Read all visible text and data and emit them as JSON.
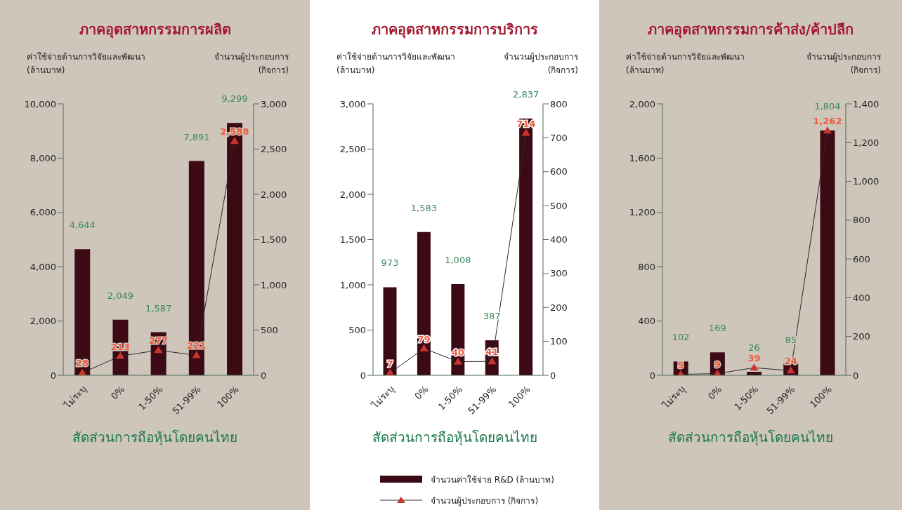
{
  "chart_data": [
    {
      "type": "bar",
      "title": "ภาคอุตสาหกรรมการผลิต",
      "xlabel": "สัดส่วนการถือหุ้นโดยคนไทย",
      "ylabel": "ค่าใช้จ่ายด้านการวิจัยและพัฒนา\n(ล้านบาท)",
      "y2label": "จำนวนผู้ประกอบการ\n(กิจการ)",
      "categories": [
        "ไม่ระบุ",
        "0%",
        "1-50%",
        "51-99%",
        "100%"
      ],
      "series": [
        {
          "color": "#3b0a14",
          "values": [
            4644,
            2049,
            1587,
            7891,
            9299
          ],
          "value_labels": [
            "4,644",
            "2,049",
            "1,587",
            "7,891",
            "9,299"
          ]
        },
        {
          "type": "line",
          "axis": "y2",
          "color": "#c8372d",
          "marker": "triangle",
          "values": [
            28,
            213,
            277,
            221,
            2588
          ],
          "value_labels": [
            "28",
            "213",
            "277",
            "221",
            "2,588"
          ]
        }
      ],
      "ylim": [
        0,
        10000
      ],
      "yticks": [
        0,
        {
          "value": 2000,
          "label": "2,000"
        },
        {
          "value": 4000,
          "label": "4,000"
        },
        {
          "value": 6000,
          "label": "6,000"
        },
        {
          "value": 8000,
          "label": "8,000"
        },
        {
          "value": 10000,
          "label": "10,000"
        }
      ],
      "y2lim": [
        0,
        3000
      ],
      "y2ticks": [
        0,
        500,
        {
          "value": 1000,
          "label": "1,000"
        },
        {
          "value": 1500,
          "label": "1,500"
        },
        {
          "value": 2000,
          "label": "2,000"
        },
        {
          "value": 2500,
          "label": "2,500"
        },
        {
          "value": 3000,
          "label": "3,000"
        }
      ]
    },
    {
      "type": "bar",
      "title": "ภาคอุตสาหกรรมการบริการ",
      "xlabel": "สัดส่วนการถือหุ้นโดยคนไทย",
      "ylabel": "ค่าใช้จ่ายด้านการวิจัยและพัฒนา\n(ล้านบาท)",
      "y2label": "จำนวนผู้ประกอบการ\n(กิจการ)",
      "categories": [
        "ไม่ระบุ",
        "0%",
        "1-50%",
        "51-99%",
        "100%"
      ],
      "series": [
        {
          "name": "จำนวนค่าใช้จ่าย R&D (ล้านบาท)",
          "color": "#3b0a14",
          "values": [
            973,
            1583,
            1008,
            387,
            2837
          ],
          "value_labels": [
            "973",
            "1,583",
            "1,008",
            "387",
            "2,837"
          ]
        },
        {
          "type": "line",
          "axis": "y2",
          "name": "จำนวนผู้ประกอบการ (กิจการ)",
          "color": "#c8372d",
          "marker": "triangle",
          "values": [
            7,
            79,
            40,
            41,
            714
          ],
          "value_labels": [
            "7",
            "79",
            "40",
            "41",
            "714"
          ]
        }
      ],
      "ylim": [
        0,
        3000
      ],
      "yticks": [
        0,
        500,
        {
          "value": 1000,
          "label": "1,000"
        },
        {
          "value": 1500,
          "label": "1,500"
        },
        {
          "value": 2000,
          "label": "2,000"
        },
        {
          "value": 2500,
          "label": "2,500"
        },
        {
          "value": 3000,
          "label": "3,000"
        }
      ],
      "y2lim": [
        0,
        800
      ],
      "y2ticks": [
        0,
        100,
        200,
        300,
        400,
        500,
        600,
        700,
        800
      ],
      "legend": "bottom"
    },
    {
      "type": "bar",
      "title": "ภาคอุตสาหกรรมการค้าส่ง/ค้าปลีก",
      "xlabel": "สัดส่วนการถือหุ้นโดยคนไทย",
      "ylabel": "ค่าใช้จ่ายด้านการวิจัยและพัฒนา\n(ล้านบาท)",
      "y2label": "จำนวนผู้ประกอบการ\n(กิจการ)",
      "categories": [
        "ไม่ระบุ",
        "0%",
        "1-50%",
        "51-99%",
        "100%"
      ],
      "series": [
        {
          "color": "#3b0a14",
          "values": [
            102,
            169,
            26,
            85,
            1804
          ],
          "value_labels": [
            "102",
            "169",
            "26",
            "85",
            "1,804"
          ]
        },
        {
          "type": "line",
          "axis": "y2",
          "color": "#c8372d",
          "marker": "triangle",
          "values": [
            5,
            9,
            39,
            24,
            1262
          ],
          "value_labels": [
            "5",
            "9",
            "39",
            "24",
            "1,262"
          ]
        }
      ],
      "ylim": [
        0,
        2000
      ],
      "yticks": [
        0,
        400,
        800,
        {
          "value": 1200,
          "label": "1,200"
        },
        {
          "value": 1600,
          "label": "1,600"
        },
        {
          "value": 2000,
          "label": "2,000"
        }
      ],
      "y2lim": [
        0,
        1400
      ],
      "y2ticks": [
        0,
        200,
        400,
        600,
        800,
        {
          "value": 1000,
          "label": "1,000"
        },
        {
          "value": 1200,
          "label": "1,200"
        },
        {
          "value": 1400,
          "label": "1,400"
        }
      ]
    }
  ]
}
